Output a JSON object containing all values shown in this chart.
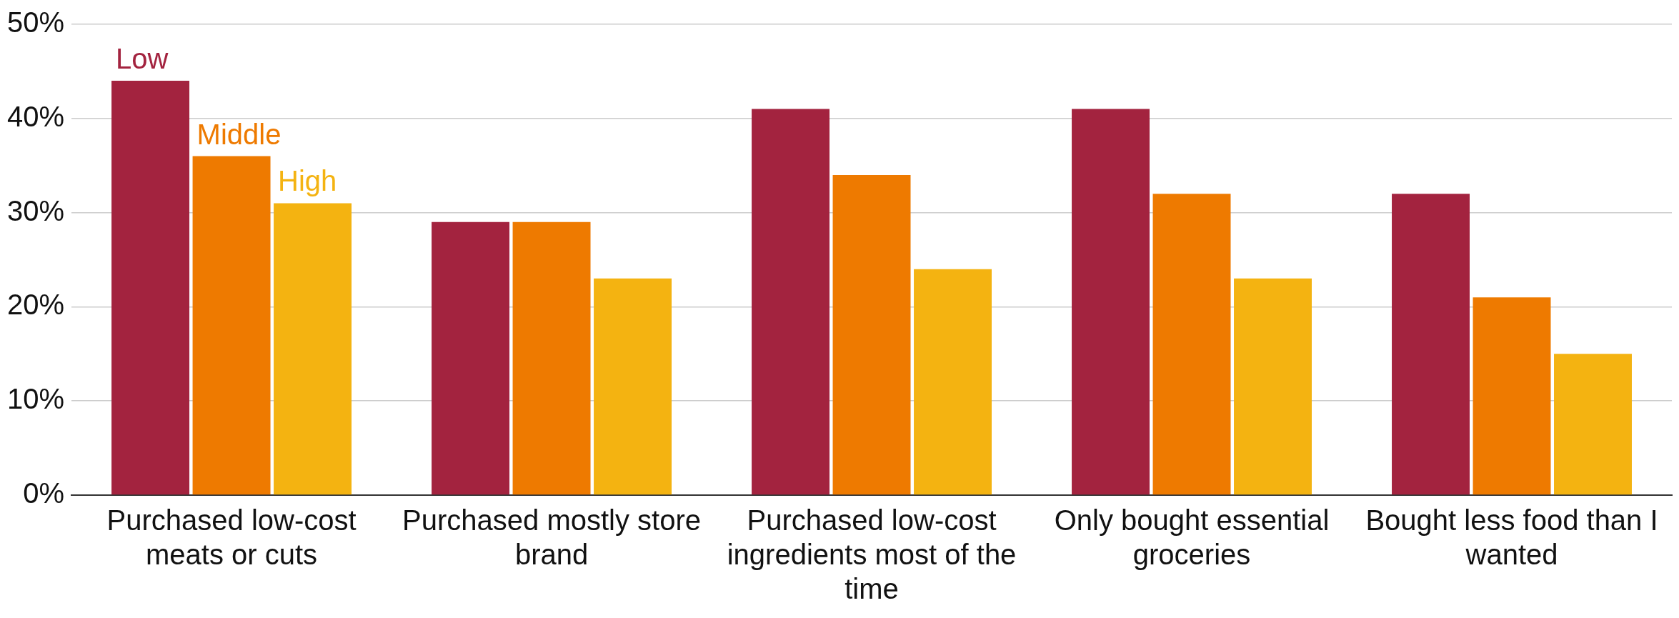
{
  "chart_data": {
    "type": "bar",
    "categories": [
      "Purchased low-cost meats or cuts",
      "Purchased mostly store brand",
      "Purchased low-cost ingredients most of the time",
      "Only bought essential groceries",
      "Bought less food than I wanted"
    ],
    "series": [
      {
        "name": "Low",
        "color": "#a3233f",
        "values": [
          44,
          29,
          41,
          41,
          32
        ]
      },
      {
        "name": "Middle",
        "color": "#ee7a00",
        "values": [
          36,
          29,
          34,
          32,
          21
        ]
      },
      {
        "name": "High",
        "color": "#f4b311",
        "values": [
          31,
          23,
          24,
          23,
          15
        ]
      }
    ],
    "ylim": [
      0,
      50
    ],
    "yticks": [
      {
        "value": 0,
        "label": "0%"
      },
      {
        "value": 10,
        "label": "10%"
      },
      {
        "value": 20,
        "label": "20%"
      },
      {
        "value": 30,
        "label": "30%"
      },
      {
        "value": 40,
        "label": "40%"
      },
      {
        "value": 50,
        "label": "50%"
      }
    ],
    "grid": "y",
    "legend": false
  }
}
